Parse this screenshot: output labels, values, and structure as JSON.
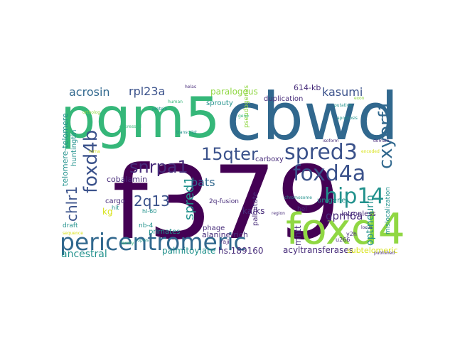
{
  "palette": {
    "dark_purple": "#440154",
    "indigo": "#3b528b",
    "blue": "#31688e",
    "teal": "#21918c",
    "green": "#35b779",
    "lime": "#90d743",
    "yellow": "#d8e219",
    "navy": "#472c7a"
  },
  "words": [
    {
      "text": "f379",
      "color": "dark_purple",
      "vertical": false
    },
    {
      "text": "cbwd",
      "color": "blue",
      "vertical": false
    },
    {
      "text": "pgm5",
      "color": "green",
      "vertical": false
    },
    {
      "text": "foxd4",
      "color": "lime",
      "vertical": false
    },
    {
      "text": "pericentromeric",
      "color": "blue",
      "vertical": false
    },
    {
      "text": "foxd4a",
      "color": "indigo",
      "vertical": false
    },
    {
      "text": "spred3",
      "color": "indigo",
      "vertical": false
    },
    {
      "text": "hip14",
      "color": "teal",
      "vertical": false
    },
    {
      "text": "cxyorf1",
      "color": "blue",
      "vertical": true
    },
    {
      "text": "foxd4b",
      "color": "indigo",
      "vertical": true
    },
    {
      "text": "snrpa1",
      "color": "navy",
      "vertical": false
    },
    {
      "text": "15qter",
      "color": "indigo",
      "vertical": false
    },
    {
      "text": "chlr1",
      "color": "indigo",
      "vertical": true
    },
    {
      "text": "acrosin",
      "color": "blue",
      "vertical": false
    },
    {
      "text": "rpl23a",
      "color": "indigo",
      "vertical": false
    },
    {
      "text": "kasumi",
      "color": "indigo",
      "vertical": false
    },
    {
      "text": "2q13",
      "color": "indigo",
      "vertical": false
    },
    {
      "text": "spred1",
      "color": "teal",
      "vertical": true
    },
    {
      "text": "pats",
      "color": "blue",
      "vertical": false
    },
    {
      "text": "gpm6a",
      "color": "navy",
      "vertical": false
    },
    {
      "text": "ancestral",
      "color": "teal",
      "vertical": false
    },
    {
      "text": "optineurin",
      "color": "teal",
      "vertical": true
    },
    {
      "text": "paralogous",
      "color": "lime",
      "vertical": false
    },
    {
      "text": "cobalamin",
      "color": "navy",
      "vertical": false
    },
    {
      "text": "palmitoylate",
      "color": "teal",
      "vertical": false
    },
    {
      "text": "hs.189160",
      "color": "navy",
      "vertical": false
    },
    {
      "text": "acyltransferases",
      "color": "navy",
      "vertical": false
    },
    {
      "text": "subtelomeric",
      "color": "yellow",
      "vertical": false
    },
    {
      "text": "mhtt",
      "color": "navy",
      "vertical": true
    },
    {
      "text": "unigene",
      "color": "teal",
      "vertical": false
    },
    {
      "text": "614-kb",
      "color": "navy",
      "vertical": false
    },
    {
      "text": "ka/ks",
      "color": "navy",
      "vertical": false
    },
    {
      "text": "intronless",
      "color": "navy",
      "vertical": false
    },
    {
      "text": "alanine-rich",
      "color": "navy",
      "vertical": false
    },
    {
      "text": "kg",
      "color": "yellow",
      "vertical": false
    },
    {
      "text": "sprouty",
      "color": "teal",
      "vertical": false
    },
    {
      "text": "duplication",
      "color": "navy",
      "vertical": false
    },
    {
      "text": "huntingtin",
      "color": "teal",
      "vertical": true
    },
    {
      "text": "cargo",
      "color": "navy",
      "vertical": false
    },
    {
      "text": "primates",
      "color": "teal",
      "vertical": false
    },
    {
      "text": "phage",
      "color": "navy",
      "vertical": false
    },
    {
      "text": "palmitate",
      "color": "navy",
      "vertical": true
    },
    {
      "text": "2q-fusion",
      "color": "navy",
      "vertical": false
    },
    {
      "text": "carboxy",
      "color": "navy",
      "vertical": false
    },
    {
      "text": "telomere-telomere",
      "color": "teal",
      "vertical": true
    },
    {
      "text": "nb-4",
      "color": "teal",
      "vertical": false
    },
    {
      "text": "draft",
      "color": "teal",
      "vertical": false
    },
    {
      "text": "hel",
      "color": "navy",
      "vertical": false
    },
    {
      "text": "u266",
      "color": "navy",
      "vertical": false
    },
    {
      "text": "y2h",
      "color": "navy",
      "vertical": false
    },
    {
      "text": "raji",
      "color": "navy",
      "vertical": false
    },
    {
      "text": "mislocalization",
      "color": "teal",
      "vertical": true
    },
    {
      "text": "hl-60",
      "color": "teal",
      "vertical": false
    },
    {
      "text": "hit",
      "color": "teal",
      "vertical": false
    },
    {
      "text": "pseudogenes",
      "color": "lime",
      "vertical": true
    },
    {
      "text": "helas",
      "color": "navy",
      "vertical": false
    },
    {
      "text": "gene",
      "color": "green",
      "vertical": false
    },
    {
      "text": "apoptosis",
      "color": "teal",
      "vertical": false
    },
    {
      "text": "sequence",
      "color": "yellow",
      "vertical": false
    },
    {
      "text": "protein",
      "color": "teal",
      "vertical": false
    },
    {
      "text": "expressed",
      "color": "green",
      "vertical": false
    },
    {
      "text": "domain",
      "color": "navy",
      "vertical": false
    },
    {
      "text": "chromosome",
      "color": "teal",
      "vertical": false
    },
    {
      "text": "ortholog",
      "color": "lime",
      "vertical": false
    },
    {
      "text": "isoform",
      "color": "navy",
      "vertical": false
    },
    {
      "text": "mrna",
      "color": "yellow",
      "vertical": false
    },
    {
      "text": "transcript",
      "color": "teal",
      "vertical": false
    },
    {
      "text": "human",
      "color": "green",
      "vertical": false
    },
    {
      "text": "region",
      "color": "navy",
      "vertical": false
    },
    {
      "text": "copies",
      "color": "teal",
      "vertical": false
    },
    {
      "text": "exon",
      "color": "lime",
      "vertical": false
    },
    {
      "text": "locus",
      "color": "navy",
      "vertical": false
    },
    {
      "text": "family",
      "color": "green",
      "vertical": false
    },
    {
      "text": "encoded",
      "color": "yellow",
      "vertical": false
    },
    {
      "text": "putative",
      "color": "teal",
      "vertical": false
    },
    {
      "text": "published",
      "color": "navy",
      "vertical": false
    }
  ]
}
